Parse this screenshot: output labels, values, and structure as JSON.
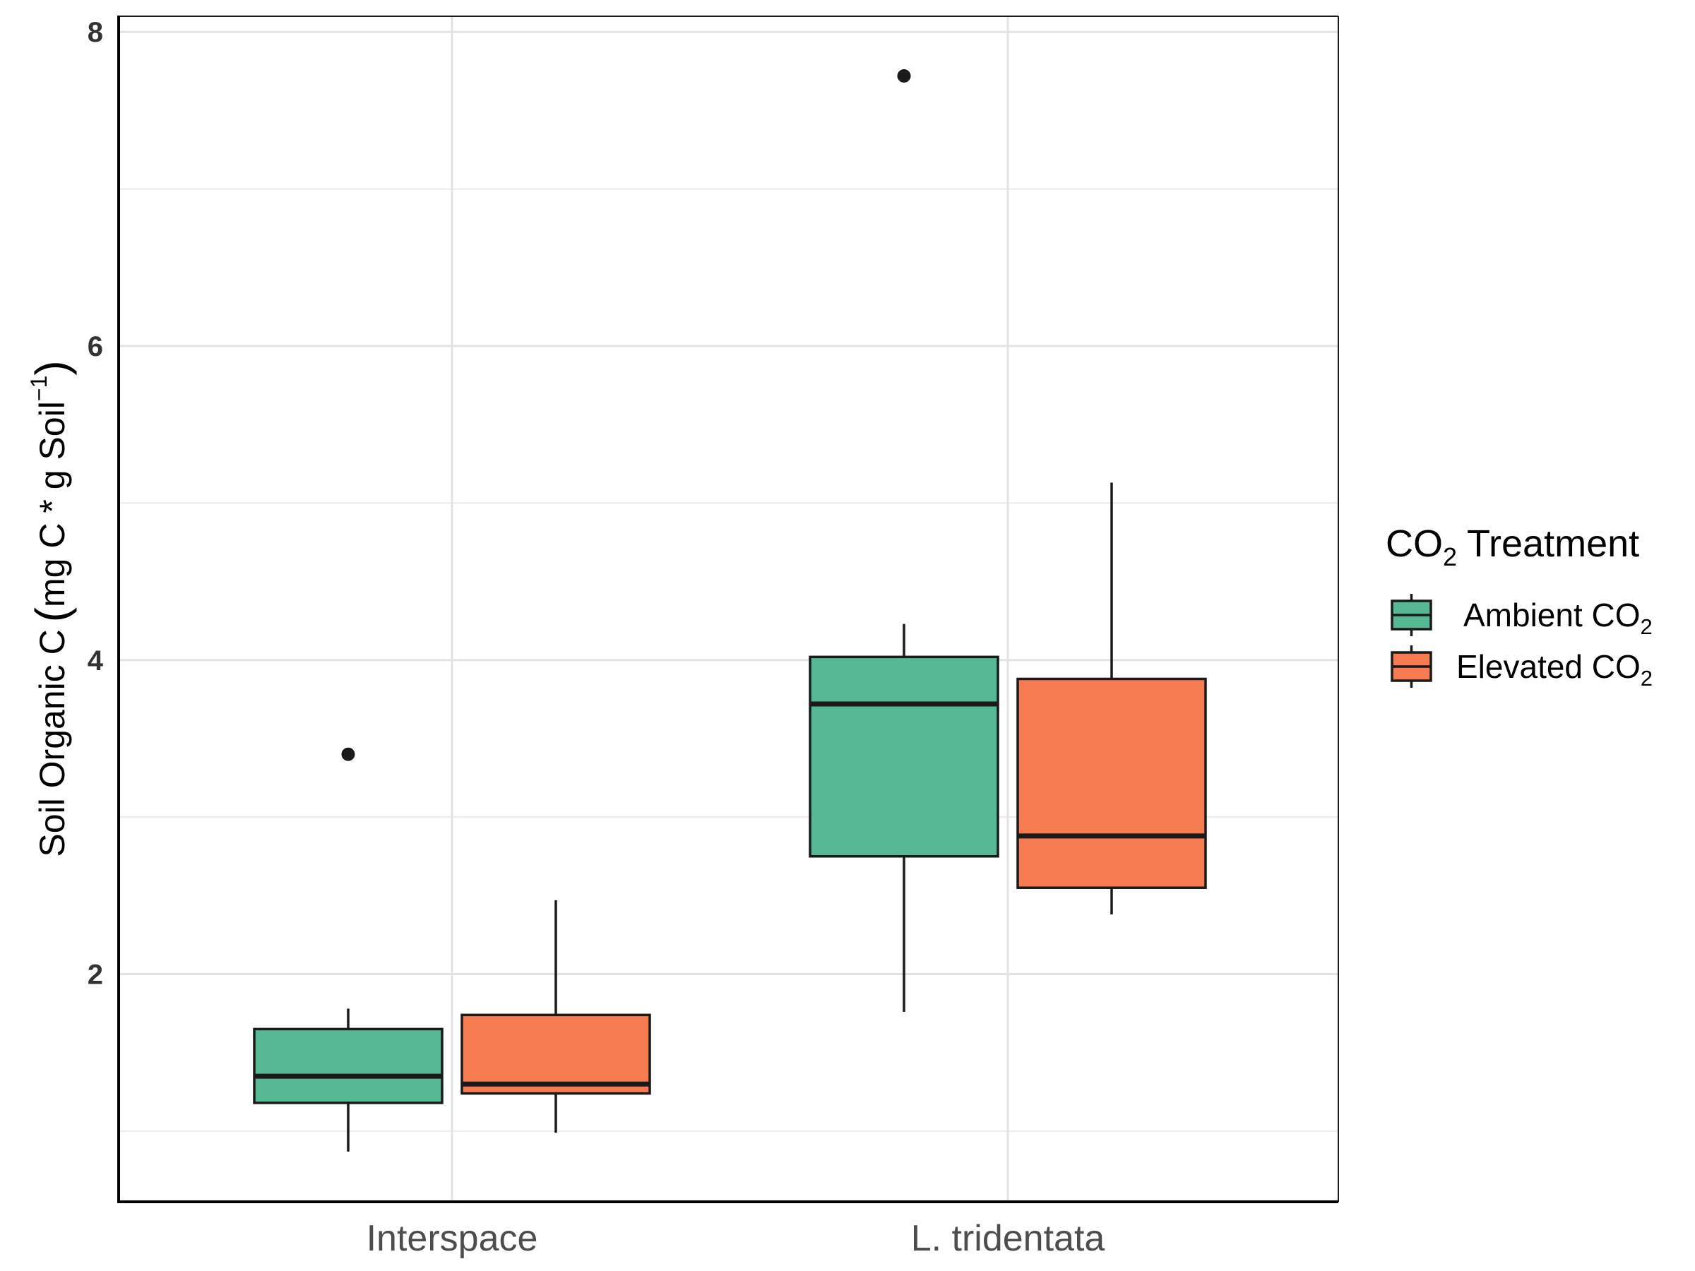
{
  "chart_data": {
    "type": "boxplot",
    "title": "",
    "xlabel": "",
    "ylabel": {
      "main": "Soil Organic C",
      "unit_prefix": "mg C * g Soil",
      "unit_superscript": "−1"
    },
    "ylim": [
      0.55,
      8.1
    ],
    "yticks": [
      2,
      4,
      6,
      8
    ],
    "yticks_labels": [
      "2",
      "4",
      "6",
      "8"
    ],
    "grid": true,
    "legend_position": "right",
    "categories": [
      "Interspace",
      "L. tridentata"
    ],
    "legend": {
      "title_main": "CO",
      "title_sub": "2",
      "title_rest": " Treatment"
    },
    "series": [
      {
        "name_main": "Ambient CO",
        "name_sub": "2",
        "color": "#57b993",
        "boxes": [
          {
            "lower_whisker": 0.87,
            "q1": 1.18,
            "median": 1.35,
            "q3": 1.65,
            "upper_whisker": 1.78,
            "outliers": [
              3.4
            ]
          },
          {
            "lower_whisker": 1.76,
            "q1": 2.75,
            "median": 3.72,
            "q3": 4.02,
            "upper_whisker": 4.23,
            "outliers": [
              7.72
            ]
          }
        ]
      },
      {
        "name_main": "Elevated CO",
        "name_sub": "2",
        "color": "#f77b51",
        "boxes": [
          {
            "lower_whisker": 0.99,
            "q1": 1.24,
            "median": 1.3,
            "q3": 1.74,
            "upper_whisker": 2.47,
            "outliers": []
          },
          {
            "lower_whisker": 2.38,
            "q1": 2.55,
            "median": 2.88,
            "q3": 3.88,
            "upper_whisker": 5.13,
            "outliers": []
          }
        ]
      }
    ]
  }
}
